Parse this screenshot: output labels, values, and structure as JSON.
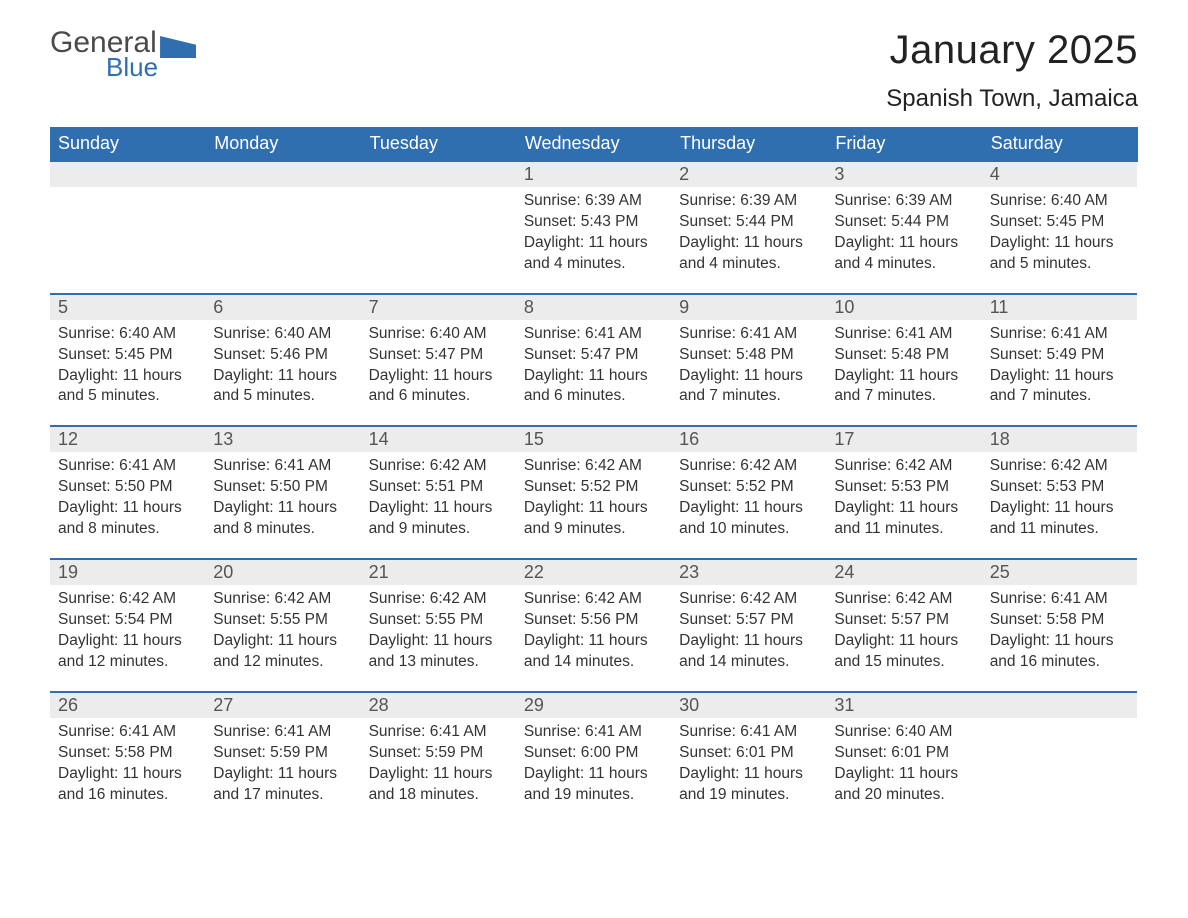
{
  "logo": {
    "line1": "General",
    "line2": "Blue"
  },
  "title": {
    "month": "January 2025",
    "location": "Spanish Town, Jamaica"
  },
  "style": {
    "header_bg": "#2f6fb0",
    "header_text": "#ffffff",
    "daynum_bg": "#ececec",
    "daynum_border": "#2f6fb0",
    "body_text": "#333333",
    "page_bg": "#ffffff",
    "title_fontsize": 40,
    "location_fontsize": 24,
    "header_fontsize": 18,
    "cell_fontsize": 15.5
  },
  "day_headers": [
    "Sunday",
    "Monday",
    "Tuesday",
    "Wednesday",
    "Thursday",
    "Friday",
    "Saturday"
  ],
  "weeks": [
    {
      "nums": [
        "",
        "",
        "",
        "1",
        "2",
        "3",
        "4"
      ],
      "cells": [
        {
          "sunrise": "",
          "sunset": "",
          "daylight": ""
        },
        {
          "sunrise": "",
          "sunset": "",
          "daylight": ""
        },
        {
          "sunrise": "",
          "sunset": "",
          "daylight": ""
        },
        {
          "sunrise": "Sunrise: 6:39 AM",
          "sunset": "Sunset: 5:43 PM",
          "daylight": "Daylight: 11 hours and 4 minutes."
        },
        {
          "sunrise": "Sunrise: 6:39 AM",
          "sunset": "Sunset: 5:44 PM",
          "daylight": "Daylight: 11 hours and 4 minutes."
        },
        {
          "sunrise": "Sunrise: 6:39 AM",
          "sunset": "Sunset: 5:44 PM",
          "daylight": "Daylight: 11 hours and 4 minutes."
        },
        {
          "sunrise": "Sunrise: 6:40 AM",
          "sunset": "Sunset: 5:45 PM",
          "daylight": "Daylight: 11 hours and 5 minutes."
        }
      ]
    },
    {
      "nums": [
        "5",
        "6",
        "7",
        "8",
        "9",
        "10",
        "11"
      ],
      "cells": [
        {
          "sunrise": "Sunrise: 6:40 AM",
          "sunset": "Sunset: 5:45 PM",
          "daylight": "Daylight: 11 hours and 5 minutes."
        },
        {
          "sunrise": "Sunrise: 6:40 AM",
          "sunset": "Sunset: 5:46 PM",
          "daylight": "Daylight: 11 hours and 5 minutes."
        },
        {
          "sunrise": "Sunrise: 6:40 AM",
          "sunset": "Sunset: 5:47 PM",
          "daylight": "Daylight: 11 hours and 6 minutes."
        },
        {
          "sunrise": "Sunrise: 6:41 AM",
          "sunset": "Sunset: 5:47 PM",
          "daylight": "Daylight: 11 hours and 6 minutes."
        },
        {
          "sunrise": "Sunrise: 6:41 AM",
          "sunset": "Sunset: 5:48 PM",
          "daylight": "Daylight: 11 hours and 7 minutes."
        },
        {
          "sunrise": "Sunrise: 6:41 AM",
          "sunset": "Sunset: 5:48 PM",
          "daylight": "Daylight: 11 hours and 7 minutes."
        },
        {
          "sunrise": "Sunrise: 6:41 AM",
          "sunset": "Sunset: 5:49 PM",
          "daylight": "Daylight: 11 hours and 7 minutes."
        }
      ]
    },
    {
      "nums": [
        "12",
        "13",
        "14",
        "15",
        "16",
        "17",
        "18"
      ],
      "cells": [
        {
          "sunrise": "Sunrise: 6:41 AM",
          "sunset": "Sunset: 5:50 PM",
          "daylight": "Daylight: 11 hours and 8 minutes."
        },
        {
          "sunrise": "Sunrise: 6:41 AM",
          "sunset": "Sunset: 5:50 PM",
          "daylight": "Daylight: 11 hours and 8 minutes."
        },
        {
          "sunrise": "Sunrise: 6:42 AM",
          "sunset": "Sunset: 5:51 PM",
          "daylight": "Daylight: 11 hours and 9 minutes."
        },
        {
          "sunrise": "Sunrise: 6:42 AM",
          "sunset": "Sunset: 5:52 PM",
          "daylight": "Daylight: 11 hours and 9 minutes."
        },
        {
          "sunrise": "Sunrise: 6:42 AM",
          "sunset": "Sunset: 5:52 PM",
          "daylight": "Daylight: 11 hours and 10 minutes."
        },
        {
          "sunrise": "Sunrise: 6:42 AM",
          "sunset": "Sunset: 5:53 PM",
          "daylight": "Daylight: 11 hours and 11 minutes."
        },
        {
          "sunrise": "Sunrise: 6:42 AM",
          "sunset": "Sunset: 5:53 PM",
          "daylight": "Daylight: 11 hours and 11 minutes."
        }
      ]
    },
    {
      "nums": [
        "19",
        "20",
        "21",
        "22",
        "23",
        "24",
        "25"
      ],
      "cells": [
        {
          "sunrise": "Sunrise: 6:42 AM",
          "sunset": "Sunset: 5:54 PM",
          "daylight": "Daylight: 11 hours and 12 minutes."
        },
        {
          "sunrise": "Sunrise: 6:42 AM",
          "sunset": "Sunset: 5:55 PM",
          "daylight": "Daylight: 11 hours and 12 minutes."
        },
        {
          "sunrise": "Sunrise: 6:42 AM",
          "sunset": "Sunset: 5:55 PM",
          "daylight": "Daylight: 11 hours and 13 minutes."
        },
        {
          "sunrise": "Sunrise: 6:42 AM",
          "sunset": "Sunset: 5:56 PM",
          "daylight": "Daylight: 11 hours and 14 minutes."
        },
        {
          "sunrise": "Sunrise: 6:42 AM",
          "sunset": "Sunset: 5:57 PM",
          "daylight": "Daylight: 11 hours and 14 minutes."
        },
        {
          "sunrise": "Sunrise: 6:42 AM",
          "sunset": "Sunset: 5:57 PM",
          "daylight": "Daylight: 11 hours and 15 minutes."
        },
        {
          "sunrise": "Sunrise: 6:41 AM",
          "sunset": "Sunset: 5:58 PM",
          "daylight": "Daylight: 11 hours and 16 minutes."
        }
      ]
    },
    {
      "nums": [
        "26",
        "27",
        "28",
        "29",
        "30",
        "31",
        ""
      ],
      "cells": [
        {
          "sunrise": "Sunrise: 6:41 AM",
          "sunset": "Sunset: 5:58 PM",
          "daylight": "Daylight: 11 hours and 16 minutes."
        },
        {
          "sunrise": "Sunrise: 6:41 AM",
          "sunset": "Sunset: 5:59 PM",
          "daylight": "Daylight: 11 hours and 17 minutes."
        },
        {
          "sunrise": "Sunrise: 6:41 AM",
          "sunset": "Sunset: 5:59 PM",
          "daylight": "Daylight: 11 hours and 18 minutes."
        },
        {
          "sunrise": "Sunrise: 6:41 AM",
          "sunset": "Sunset: 6:00 PM",
          "daylight": "Daylight: 11 hours and 19 minutes."
        },
        {
          "sunrise": "Sunrise: 6:41 AM",
          "sunset": "Sunset: 6:01 PM",
          "daylight": "Daylight: 11 hours and 19 minutes."
        },
        {
          "sunrise": "Sunrise: 6:40 AM",
          "sunset": "Sunset: 6:01 PM",
          "daylight": "Daylight: 11 hours and 20 minutes."
        },
        {
          "sunrise": "",
          "sunset": "",
          "daylight": ""
        }
      ]
    }
  ]
}
